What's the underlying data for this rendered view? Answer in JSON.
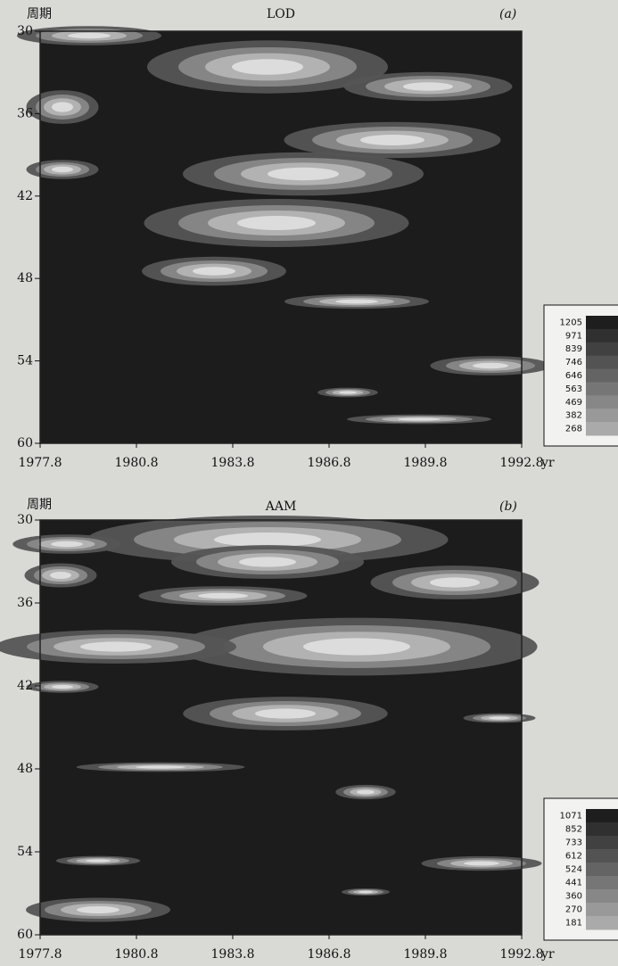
{
  "chart_data": [
    {
      "type": "contour",
      "title": "LOD",
      "panel_label": "(a)",
      "y_label": "周期",
      "x_label": "yr",
      "xlim": [
        1977.8,
        1992.8
      ],
      "xticks": [
        1977.8,
        1980.8,
        1983.8,
        1986.8,
        1989.8,
        1992.8
      ],
      "ylim": [
        30,
        60
      ],
      "yticks": [
        30,
        36,
        42,
        48,
        54,
        60
      ],
      "levels": [
        1205,
        971,
        839,
        746,
        646,
        563,
        469,
        382,
        268
      ]
    },
    {
      "type": "contour",
      "title": "AAM",
      "panel_label": "(b)",
      "y_label": "周期",
      "x_label": "yr",
      "xlim": [
        1977.8,
        1992.8
      ],
      "xticks": [
        1977.8,
        1980.8,
        1983.8,
        1986.8,
        1989.8,
        1992.8
      ],
      "ylim": [
        30,
        60
      ],
      "yticks": [
        30,
        36,
        42,
        48,
        54,
        60
      ],
      "levels": [
        1071,
        852,
        733,
        612,
        524,
        441,
        360,
        270,
        181
      ]
    }
  ]
}
